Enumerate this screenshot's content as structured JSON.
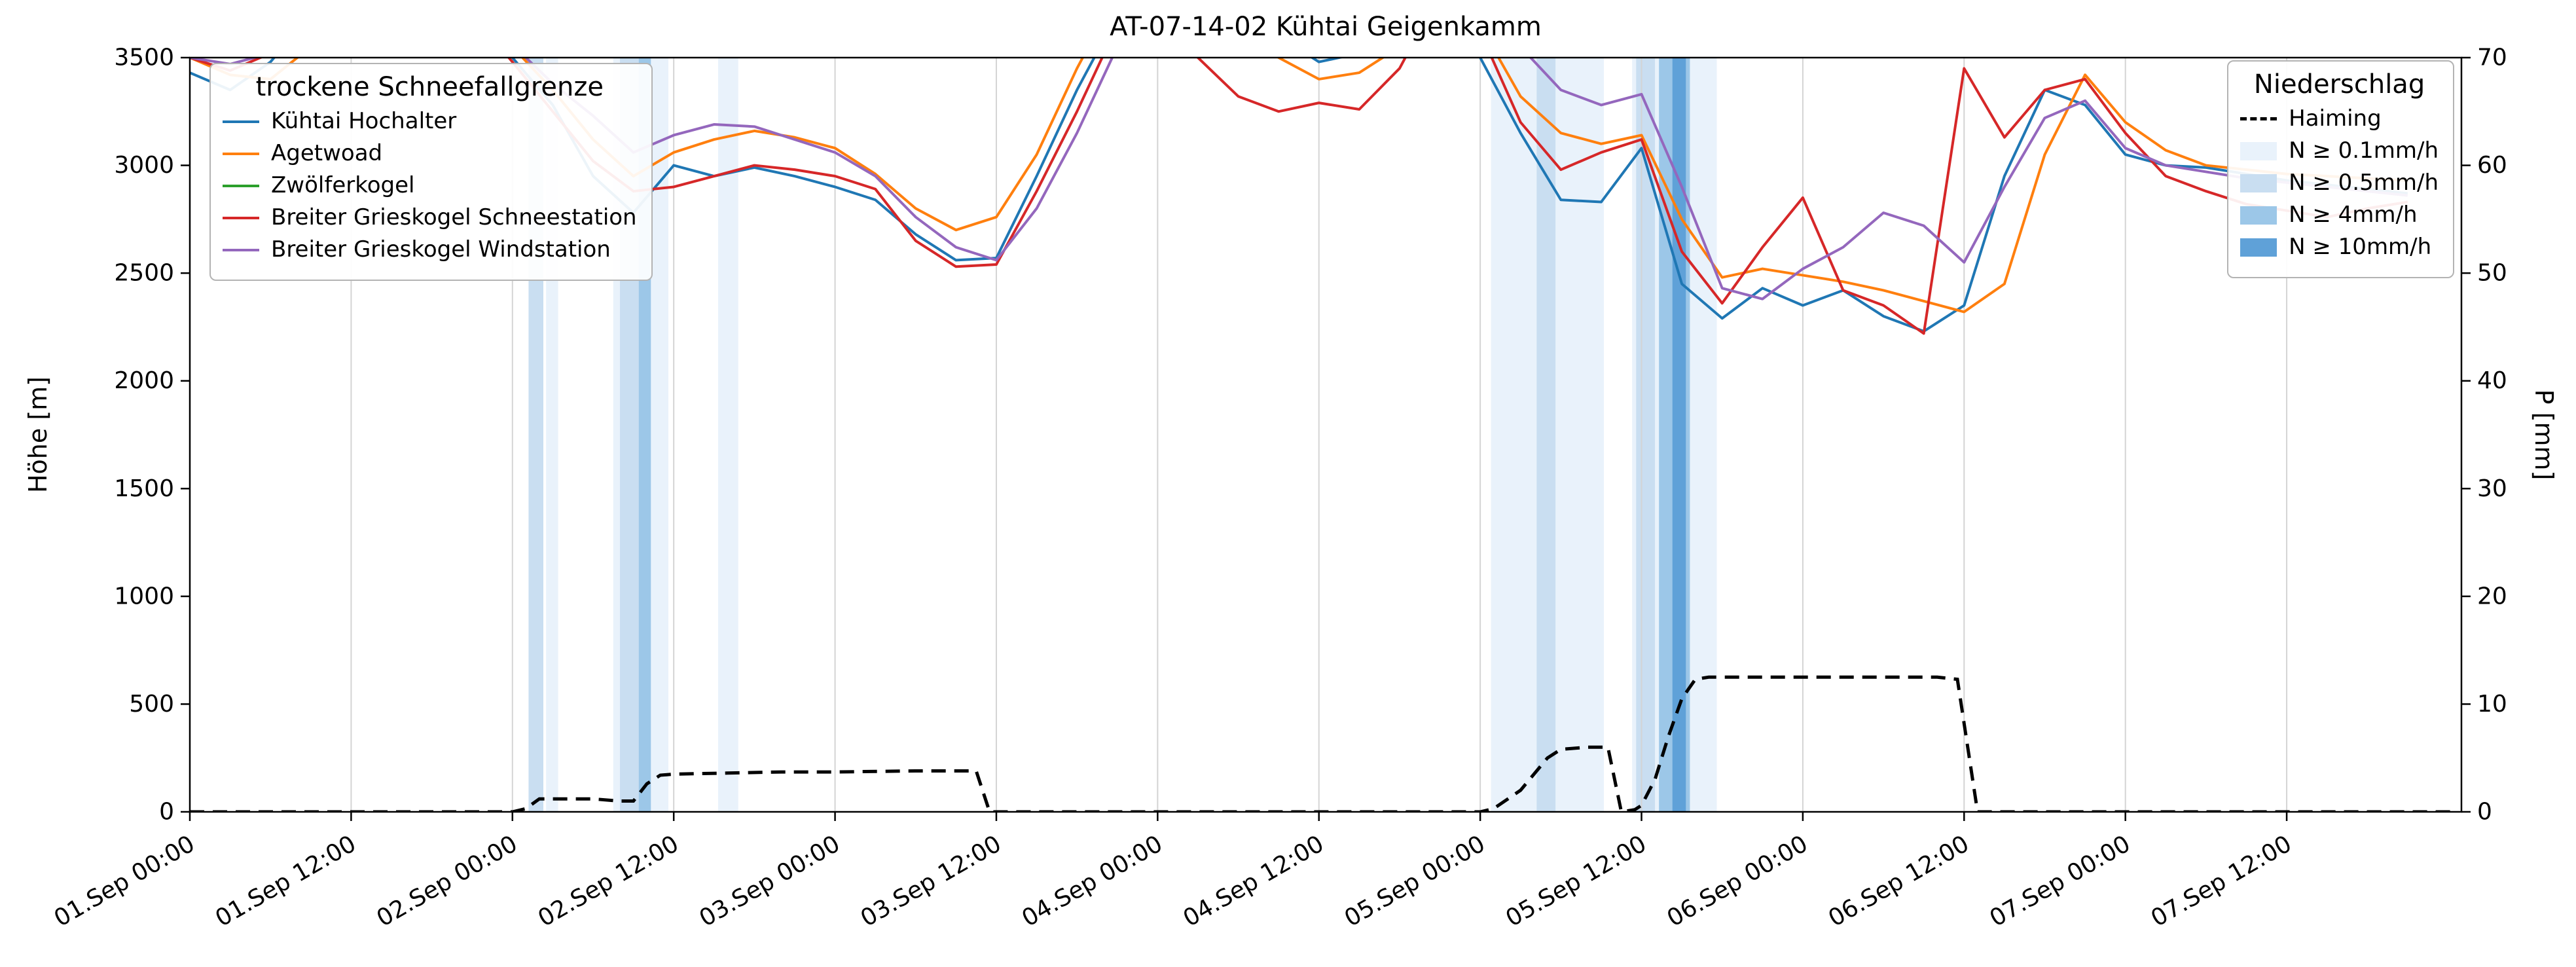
{
  "title": "AT-07-14-02 Kühtai Geigenkamm",
  "axes": {
    "y_left_label": "Höhe [m]",
    "y_right_label": "P [mm]"
  },
  "legend_snowline": {
    "title": "trockene Schneefallgrenze",
    "items": [
      {
        "label": "Kühtai Hochalter",
        "color": "#1f77b4",
        "swatch": "line"
      },
      {
        "label": "Agetwoad",
        "color": "#ff7f0e",
        "swatch": "line"
      },
      {
        "label": "Zwölferkogel",
        "color": "#2ca02c",
        "swatch": "line"
      },
      {
        "label": "Breiter Grieskogel Schneestation",
        "color": "#d62728",
        "swatch": "line"
      },
      {
        "label": "Breiter Grieskogel Windstation",
        "color": "#9467bd",
        "swatch": "line"
      }
    ]
  },
  "legend_precip": {
    "title": "Niederschlag",
    "items": [
      {
        "label": "Haiming",
        "color": "#000000",
        "swatch": "dash"
      },
      {
        "label": "N ≥ 0.1mm/h",
        "color": "#e9f2fb",
        "swatch": "patch"
      },
      {
        "label": "N ≥ 0.5mm/h",
        "color": "#c9def1",
        "swatch": "patch"
      },
      {
        "label": "N ≥ 4mm/h",
        "color": "#9cc7e8",
        "swatch": "patch"
      },
      {
        "label": "N ≥ 10mm/h",
        "color": "#5fa1d8",
        "swatch": "patch"
      }
    ]
  },
  "chart_data": {
    "type": "line",
    "title": "AT-07-14-02 Kühtai Geigenkamm",
    "xlabel": "",
    "ylabel_left": "Höhe [m]",
    "ylabel_right": "P [mm]",
    "x_unit": "hours since 01.Sep 00:00",
    "xlim": [
      0,
      169
    ],
    "ylim_left": [
      0,
      3500
    ],
    "ylim_right": [
      0,
      70
    ],
    "grid": "vertical",
    "legend_positions": {
      "snowline": "upper left",
      "precip": "upper right"
    },
    "x_ticks": [
      {
        "t": 0,
        "label": "01.Sep 00:00"
      },
      {
        "t": 12,
        "label": "01.Sep 12:00"
      },
      {
        "t": 24,
        "label": "02.Sep 00:00"
      },
      {
        "t": 36,
        "label": "02.Sep 12:00"
      },
      {
        "t": 48,
        "label": "03.Sep 00:00"
      },
      {
        "t": 60,
        "label": "03.Sep 12:00"
      },
      {
        "t": 72,
        "label": "04.Sep 00:00"
      },
      {
        "t": 84,
        "label": "04.Sep 12:00"
      },
      {
        "t": 96,
        "label": "05.Sep 00:00"
      },
      {
        "t": 108,
        "label": "05.Sep 12:00"
      },
      {
        "t": 120,
        "label": "06.Sep 00:00"
      },
      {
        "t": 132,
        "label": "06.Sep 12:00"
      },
      {
        "t": 144,
        "label": "07.Sep 00:00"
      },
      {
        "t": 156,
        "label": "07.Sep 12:00"
      }
    ],
    "yticks_left": [
      0,
      500,
      1000,
      1500,
      2000,
      2500,
      3000,
      3500
    ],
    "yticks_right": [
      0,
      10,
      20,
      30,
      40,
      50,
      60,
      70
    ],
    "x_hours": [
      0,
      3,
      6,
      9,
      12,
      15,
      18,
      21,
      24,
      27,
      30,
      33,
      36,
      39,
      42,
      45,
      48,
      51,
      54,
      57,
      60,
      63,
      66,
      69,
      72,
      75,
      78,
      81,
      84,
      87,
      90,
      93,
      96,
      99,
      102,
      105,
      108,
      111,
      114,
      117,
      120,
      123,
      126,
      129,
      132,
      135,
      138,
      141,
      144,
      147,
      150,
      153,
      156,
      159,
      162,
      165
    ],
    "series": [
      {
        "name": "Kühtai Hochalter",
        "color": "#1f77b4",
        "values": [
          3430,
          3350,
          3480,
          3700,
          3800,
          3800,
          3800,
          3700,
          3500,
          3280,
          2950,
          2780,
          3000,
          2950,
          2990,
          2950,
          2900,
          2840,
          2680,
          2560,
          2570,
          2950,
          3350,
          3700,
          3800,
          3800,
          3800,
          3600,
          3480,
          3520,
          3680,
          3800,
          3500,
          3150,
          2840,
          2830,
          3080,
          2450,
          2290,
          2430,
          2350,
          2420,
          2300,
          2230,
          2350,
          2950,
          3350,
          3280,
          3050,
          3000,
          2990,
          2960,
          2930,
          2910,
          2890,
          2870
        ]
      },
      {
        "name": "Agetwoad",
        "color": "#ff7f0e",
        "values": [
          3500,
          3420,
          3400,
          3550,
          3800,
          3800,
          3800,
          3750,
          3550,
          3350,
          3120,
          2950,
          3060,
          3120,
          3160,
          3130,
          3080,
          2960,
          2800,
          2700,
          2760,
          3050,
          3450,
          3800,
          3800,
          3800,
          3800,
          3500,
          3400,
          3430,
          3550,
          3800,
          3650,
          3320,
          3150,
          3100,
          3140,
          2750,
          2480,
          2520,
          2490,
          2460,
          2420,
          2370,
          2320,
          2450,
          3050,
          3420,
          3200,
          3070,
          3000,
          2980,
          2960,
          2950,
          2940,
          2930
        ]
      },
      {
        "name": "Zwölferkogel",
        "color": "#2ca02c",
        "values": []
      },
      {
        "name": "Breiter Grieskogel Schneestation",
        "color": "#d62728",
        "values": [
          3500,
          3440,
          3520,
          3700,
          3800,
          3800,
          3800,
          3700,
          3480,
          3250,
          3020,
          2880,
          2900,
          2950,
          3000,
          2980,
          2950,
          2890,
          2650,
          2530,
          2540,
          2880,
          3250,
          3650,
          3800,
          3500,
          3320,
          3250,
          3290,
          3260,
          3450,
          3800,
          3620,
          3200,
          2980,
          3060,
          3120,
          2600,
          2360,
          2620,
          2850,
          2420,
          2350,
          2220,
          3450,
          3130,
          3350,
          3400,
          3150,
          2950,
          2880,
          2820,
          2790,
          2760,
          2800,
          2830
        ]
      },
      {
        "name": "Breiter Grieskogel Windstation",
        "color": "#9467bd",
        "values": [
          3500,
          3470,
          3520,
          3650,
          3800,
          3800,
          3800,
          3750,
          3560,
          3380,
          3230,
          3060,
          3140,
          3190,
          3180,
          3120,
          3060,
          2950,
          2760,
          2620,
          2560,
          2800,
          3150,
          3550,
          3800,
          3800,
          3800,
          3700,
          3600,
          3650,
          3750,
          3800,
          3800,
          3550,
          3350,
          3280,
          3330,
          2900,
          2430,
          2380,
          2520,
          2620,
          2780,
          2720,
          2550,
          2900,
          3220,
          3300,
          3080,
          3000,
          2970,
          2940,
          2920,
          2900,
          2880,
          2860
        ]
      }
    ],
    "precip_line": {
      "name": "Haiming",
      "color": "#000000",
      "style": "dashed",
      "axis": "right",
      "points": [
        [
          0,
          0
        ],
        [
          24,
          0
        ],
        [
          25,
          0.3
        ],
        [
          26,
          1.2
        ],
        [
          30,
          1.2
        ],
        [
          32,
          1.0
        ],
        [
          33,
          1.0
        ],
        [
          34,
          2.6
        ],
        [
          35,
          3.4
        ],
        [
          36,
          3.5
        ],
        [
          40,
          3.6
        ],
        [
          44,
          3.7
        ],
        [
          48,
          3.7
        ],
        [
          54,
          3.8
        ],
        [
          58.5,
          3.8
        ],
        [
          59.5,
          0
        ],
        [
          96,
          0
        ],
        [
          97,
          0.3
        ],
        [
          99,
          2.0
        ],
        [
          101,
          5.0
        ],
        [
          102,
          5.8
        ],
        [
          104,
          6.0
        ],
        [
          105.5,
          6.0
        ],
        [
          106.5,
          0
        ],
        [
          107.5,
          0.2
        ],
        [
          108,
          0.6
        ],
        [
          109,
          3.0
        ],
        [
          110,
          7.0
        ],
        [
          111,
          10.5
        ],
        [
          112,
          12.3
        ],
        [
          113,
          12.5
        ],
        [
          130,
          12.5
        ],
        [
          131.5,
          12.3
        ],
        [
          133,
          0
        ],
        [
          168.5,
          0
        ]
      ]
    },
    "band_levels": [
      {
        "label": "N ≥ 0.1mm/h",
        "color": "#e9f2fb"
      },
      {
        "label": "N ≥ 0.5mm/h",
        "color": "#c9def1"
      },
      {
        "label": "N ≥ 4mm/h",
        "color": "#9cc7e8"
      },
      {
        "label": "N ≥ 10mm/h",
        "color": "#5fa1d8"
      }
    ],
    "precip_bands": [
      {
        "from": 25.2,
        "to": 26.3,
        "level": 1
      },
      {
        "from": 26.5,
        "to": 27.4,
        "level": 0
      },
      {
        "from": 31.5,
        "to": 35.6,
        "level": 0
      },
      {
        "from": 32.0,
        "to": 33.6,
        "level": 1
      },
      {
        "from": 33.4,
        "to": 34.3,
        "level": 2
      },
      {
        "from": 39.3,
        "to": 40.8,
        "level": 0
      },
      {
        "from": 96.8,
        "to": 105.2,
        "level": 0
      },
      {
        "from": 100.2,
        "to": 101.6,
        "level": 1
      },
      {
        "from": 107.3,
        "to": 113.6,
        "level": 0
      },
      {
        "from": 107.6,
        "to": 109.0,
        "level": 1
      },
      {
        "from": 109.3,
        "to": 111.6,
        "level": 2
      },
      {
        "from": 110.3,
        "to": 111.3,
        "level": 3
      }
    ]
  }
}
